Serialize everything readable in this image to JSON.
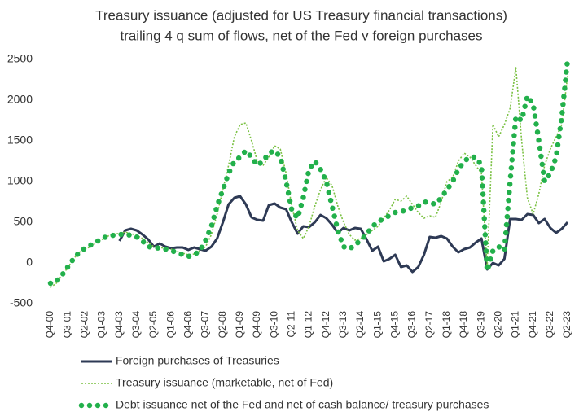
{
  "chart_data": {
    "type": "line",
    "title": "Treasury issuance (adjusted for US Treasury financial transactions)",
    "subtitle": "trailing 4 q sum of flows, net of the Fed v foreign purchases",
    "categories": [
      "Q4-00",
      null,
      null,
      "Q3-01",
      null,
      null,
      "Q2-02",
      null,
      null,
      "Q1-03",
      null,
      null,
      "Q4-03",
      null,
      null,
      "Q3-04",
      null,
      null,
      "Q2-05",
      null,
      null,
      "Q1-06",
      null,
      null,
      "Q4-06",
      null,
      null,
      "Q3-07",
      null,
      null,
      "Q2-08",
      null,
      null,
      "Q1-09",
      null,
      null,
      "Q4-09",
      null,
      null,
      "Q3-10",
      null,
      null,
      "Q2-11",
      null,
      null,
      "Q1-12",
      null,
      null,
      "Q4-12",
      null,
      null,
      "Q3-13",
      null,
      null,
      "Q2-14",
      null,
      null,
      "Q1-15",
      null,
      null,
      "Q4-15",
      null,
      null,
      "Q3-16",
      null,
      null,
      "Q2-17",
      null,
      null,
      "Q1-18",
      null,
      null,
      "Q4-18",
      null,
      null,
      "Q3-19",
      null,
      null,
      "Q2-20",
      null,
      null,
      "Q1-21",
      null,
      null,
      "Q4-21",
      null,
      null,
      "Q3-22",
      null,
      null,
      "Q2-23"
    ],
    "series": [
      {
        "name": "Foreign purchases of Treasuries",
        "color": "#2e3a55",
        "style": "solid",
        "values": [
          null,
          null,
          null,
          null,
          null,
          null,
          null,
          null,
          null,
          null,
          null,
          null,
          270,
          400,
          420,
          400,
          350,
          290,
          200,
          240,
          200,
          180,
          190,
          190,
          160,
          190,
          170,
          150,
          200,
          300,
          500,
          720,
          800,
          820,
          720,
          560,
          530,
          520,
          710,
          730,
          680,
          660,
          500,
          360,
          450,
          440,
          500,
          590,
          550,
          470,
          370,
          430,
          400,
          430,
          420,
          290,
          150,
          200,
          20,
          50,
          100,
          -50,
          -30,
          -110,
          -50,
          100,
          320,
          310,
          330,
          300,
          200,
          130,
          170,
          190,
          250,
          300,
          -80,
          0,
          -30,
          50,
          540,
          540,
          530,
          600,
          590,
          490,
          540,
          430,
          370,
          420,
          500
        ]
      },
      {
        "name": "Treasury issuance (marketable, net of Fed)",
        "color": "#7ac142",
        "style": "dotted",
        "values": [
          -300,
          -250,
          -150,
          -60,
          50,
          130,
          170,
          200,
          250,
          290,
          330,
          360,
          360,
          380,
          360,
          340,
          300,
          250,
          200,
          190,
          180,
          170,
          140,
          120,
          100,
          110,
          150,
          200,
          350,
          600,
          900,
          1200,
          1550,
          1700,
          1720,
          1500,
          1250,
          1200,
          1300,
          1440,
          1400,
          1100,
          700,
          400,
          300,
          450,
          700,
          900,
          1050,
          950,
          700,
          500,
          350,
          280,
          300,
          350,
          400,
          450,
          550,
          650,
          780,
          760,
          820,
          720,
          620,
          550,
          580,
          560,
          750,
          1000,
          1050,
          1250,
          1350,
          1300,
          1200,
          1100,
          -50,
          1700,
          1550,
          1700,
          1900,
          2400,
          1500,
          800,
          600,
          850,
          1200,
          1400,
          1550,
          1700,
          2300
        ]
      },
      {
        "name": "Debt issuance net of the Fed and net of cash balance/ treasury purchases",
        "color": "#22b04b",
        "style": "dots",
        "values": [
          -250,
          -230,
          -150,
          -50,
          50,
          130,
          180,
          220,
          260,
          300,
          330,
          340,
          350,
          350,
          340,
          320,
          270,
          200,
          190,
          180,
          170,
          150,
          130,
          100,
          80,
          100,
          150,
          280,
          450,
          700,
          900,
          1100,
          1250,
          1300,
          1380,
          1300,
          1200,
          1250,
          1350,
          1380,
          1300,
          1000,
          650,
          550,
          800,
          1150,
          1250,
          1150,
          1000,
          700,
          400,
          200,
          170,
          220,
          280,
          350,
          450,
          500,
          550,
          580,
          620,
          630,
          650,
          680,
          700,
          750,
          740,
          720,
          800,
          900,
          1000,
          1150,
          1250,
          1300,
          1300,
          1200,
          -100,
          150,
          200,
          150,
          1000,
          1800,
          1750,
          2050,
          1950,
          1500,
          1000,
          1100,
          1300,
          1800,
          2500
        ]
      }
    ],
    "ylim": [
      -500,
      2500
    ],
    "yticks": [
      -500,
      0,
      500,
      1000,
      1500,
      2000,
      2500
    ],
    "grid": false
  }
}
